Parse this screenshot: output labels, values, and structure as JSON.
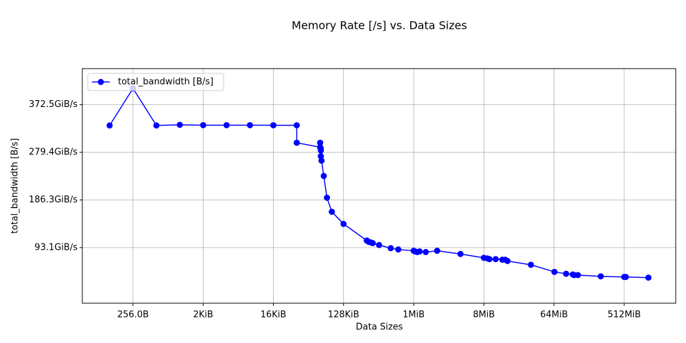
{
  "chart_data": {
    "type": "line",
    "title": "Memory Rate [/s] vs. Data Sizes",
    "x_label": "Data Sizes",
    "y_label": "total_bandwidth [B/s]",
    "x": [
      128,
      256,
      512,
      1024,
      2048,
      4096,
      8192,
      16384,
      32768,
      32768,
      65536,
      65536,
      66900,
      66900,
      66900,
      68300,
      73000,
      80200,
      92700,
      131072,
      261000,
      277000,
      295000,
      312000,
      376000,
      531000,
      664000,
      1048576,
      1090000,
      1160000,
      1250000,
      1500000,
      2100000,
      4190000,
      8390000,
      9300000,
      9900000,
      11900000,
      14500000,
      15800000,
      16900000,
      33800000,
      67900000,
      96000000,
      117000000,
      122000000,
      136000000,
      268000000,
      537000000,
      563000000,
      1100000000
    ],
    "series": [
      {
        "name": "total_bandwidth [B/s]",
        "color": "#0000ff",
        "values": [
          356400000000,
          434200000000,
          356400000000,
          357700000000,
          357000000000,
          357000000000,
          357000000000,
          356800000000,
          356800000000,
          320100000000,
          310700000000,
          320100000000,
          308100000000,
          304000000000,
          291900000000,
          282600000000,
          250300000000,
          204700000000,
          175200000000,
          149700000000,
          114800000000,
          112100000000,
          110700000000,
          109400000000,
          105400000000,
          98700000000,
          96000000000,
          93300000000,
          91900000000,
          90600000000,
          91900000000,
          90600000000,
          93300000000,
          86600000000,
          78500000000,
          77200000000,
          75800000000,
          75800000000,
          74500000000,
          74500000000,
          71800000000,
          63800000000,
          49000000000,
          45000000000,
          43600000000,
          42300000000,
          42300000000,
          39600000000,
          38300000000,
          38300000000,
          36900000000
        ]
      }
    ],
    "xscale": "log2",
    "xlim": [
      57,
      2470000000
    ],
    "xticks": [
      {
        "value": 256,
        "label": "256.0B"
      },
      {
        "value": 2048,
        "label": "2KiB"
      },
      {
        "value": 16384,
        "label": "16KiB"
      },
      {
        "value": 131072,
        "label": "128KiB"
      },
      {
        "value": 1048576,
        "label": "1MiB"
      },
      {
        "value": 8388608,
        "label": "8MiB"
      },
      {
        "value": 67108864,
        "label": "64MiB"
      },
      {
        "value": 536870912,
        "label": "512MiB"
      }
    ],
    "ylim": [
      -16800000000,
      475800000000
    ],
    "yticks": [
      {
        "value": 100000000000,
        "label": "93.1GiB/s"
      },
      {
        "value": 200000000000,
        "label": "186.3GiB/s"
      },
      {
        "value": 300000000000,
        "label": "279.4GiB/s"
      },
      {
        "value": 400000000000,
        "label": "372.5GiB/s"
      }
    ],
    "grid": true,
    "legend": "upper left"
  }
}
